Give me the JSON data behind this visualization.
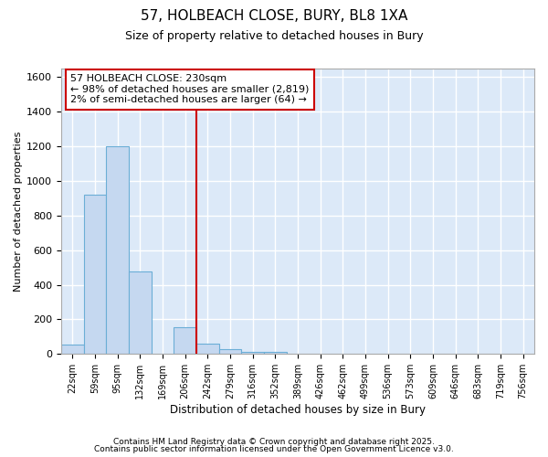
{
  "title1": "57, HOLBEACH CLOSE, BURY, BL8 1XA",
  "title2": "Size of property relative to detached houses in Bury",
  "xlabel": "Distribution of detached houses by size in Bury",
  "ylabel": "Number of detached properties",
  "bar_heights": [
    55,
    920,
    1200,
    475,
    0,
    155,
    60,
    30,
    15,
    15,
    0,
    0,
    0,
    0,
    0,
    0,
    0,
    0,
    0,
    0,
    0
  ],
  "bin_labels": [
    "22sqm",
    "59sqm",
    "95sqm",
    "132sqm",
    "169sqm",
    "206sqm",
    "242sqm",
    "279sqm",
    "316sqm",
    "352sqm",
    "389sqm",
    "426sqm",
    "462sqm",
    "499sqm",
    "536sqm",
    "573sqm",
    "609sqm",
    "646sqm",
    "683sqm",
    "719sqm",
    "756sqm"
  ],
  "bar_color": "#c5d8f0",
  "bar_edge_color": "#6baed6",
  "red_line_index": 6,
  "red_line_color": "#cc0000",
  "ylim": [
    0,
    1650
  ],
  "yticks": [
    0,
    200,
    400,
    600,
    800,
    1000,
    1200,
    1400,
    1600
  ],
  "axes_bg_color": "#dce9f8",
  "fig_bg_color": "#ffffff",
  "grid_color": "#ffffff",
  "annotation_text": "57 HOLBEACH CLOSE: 230sqm\n← 98% of detached houses are smaller (2,819)\n2% of semi-detached houses are larger (64) →",
  "annotation_box_edge": "#cc0000",
  "footer1": "Contains HM Land Registry data © Crown copyright and database right 2025.",
  "footer2": "Contains public sector information licensed under the Open Government Licence v3.0."
}
